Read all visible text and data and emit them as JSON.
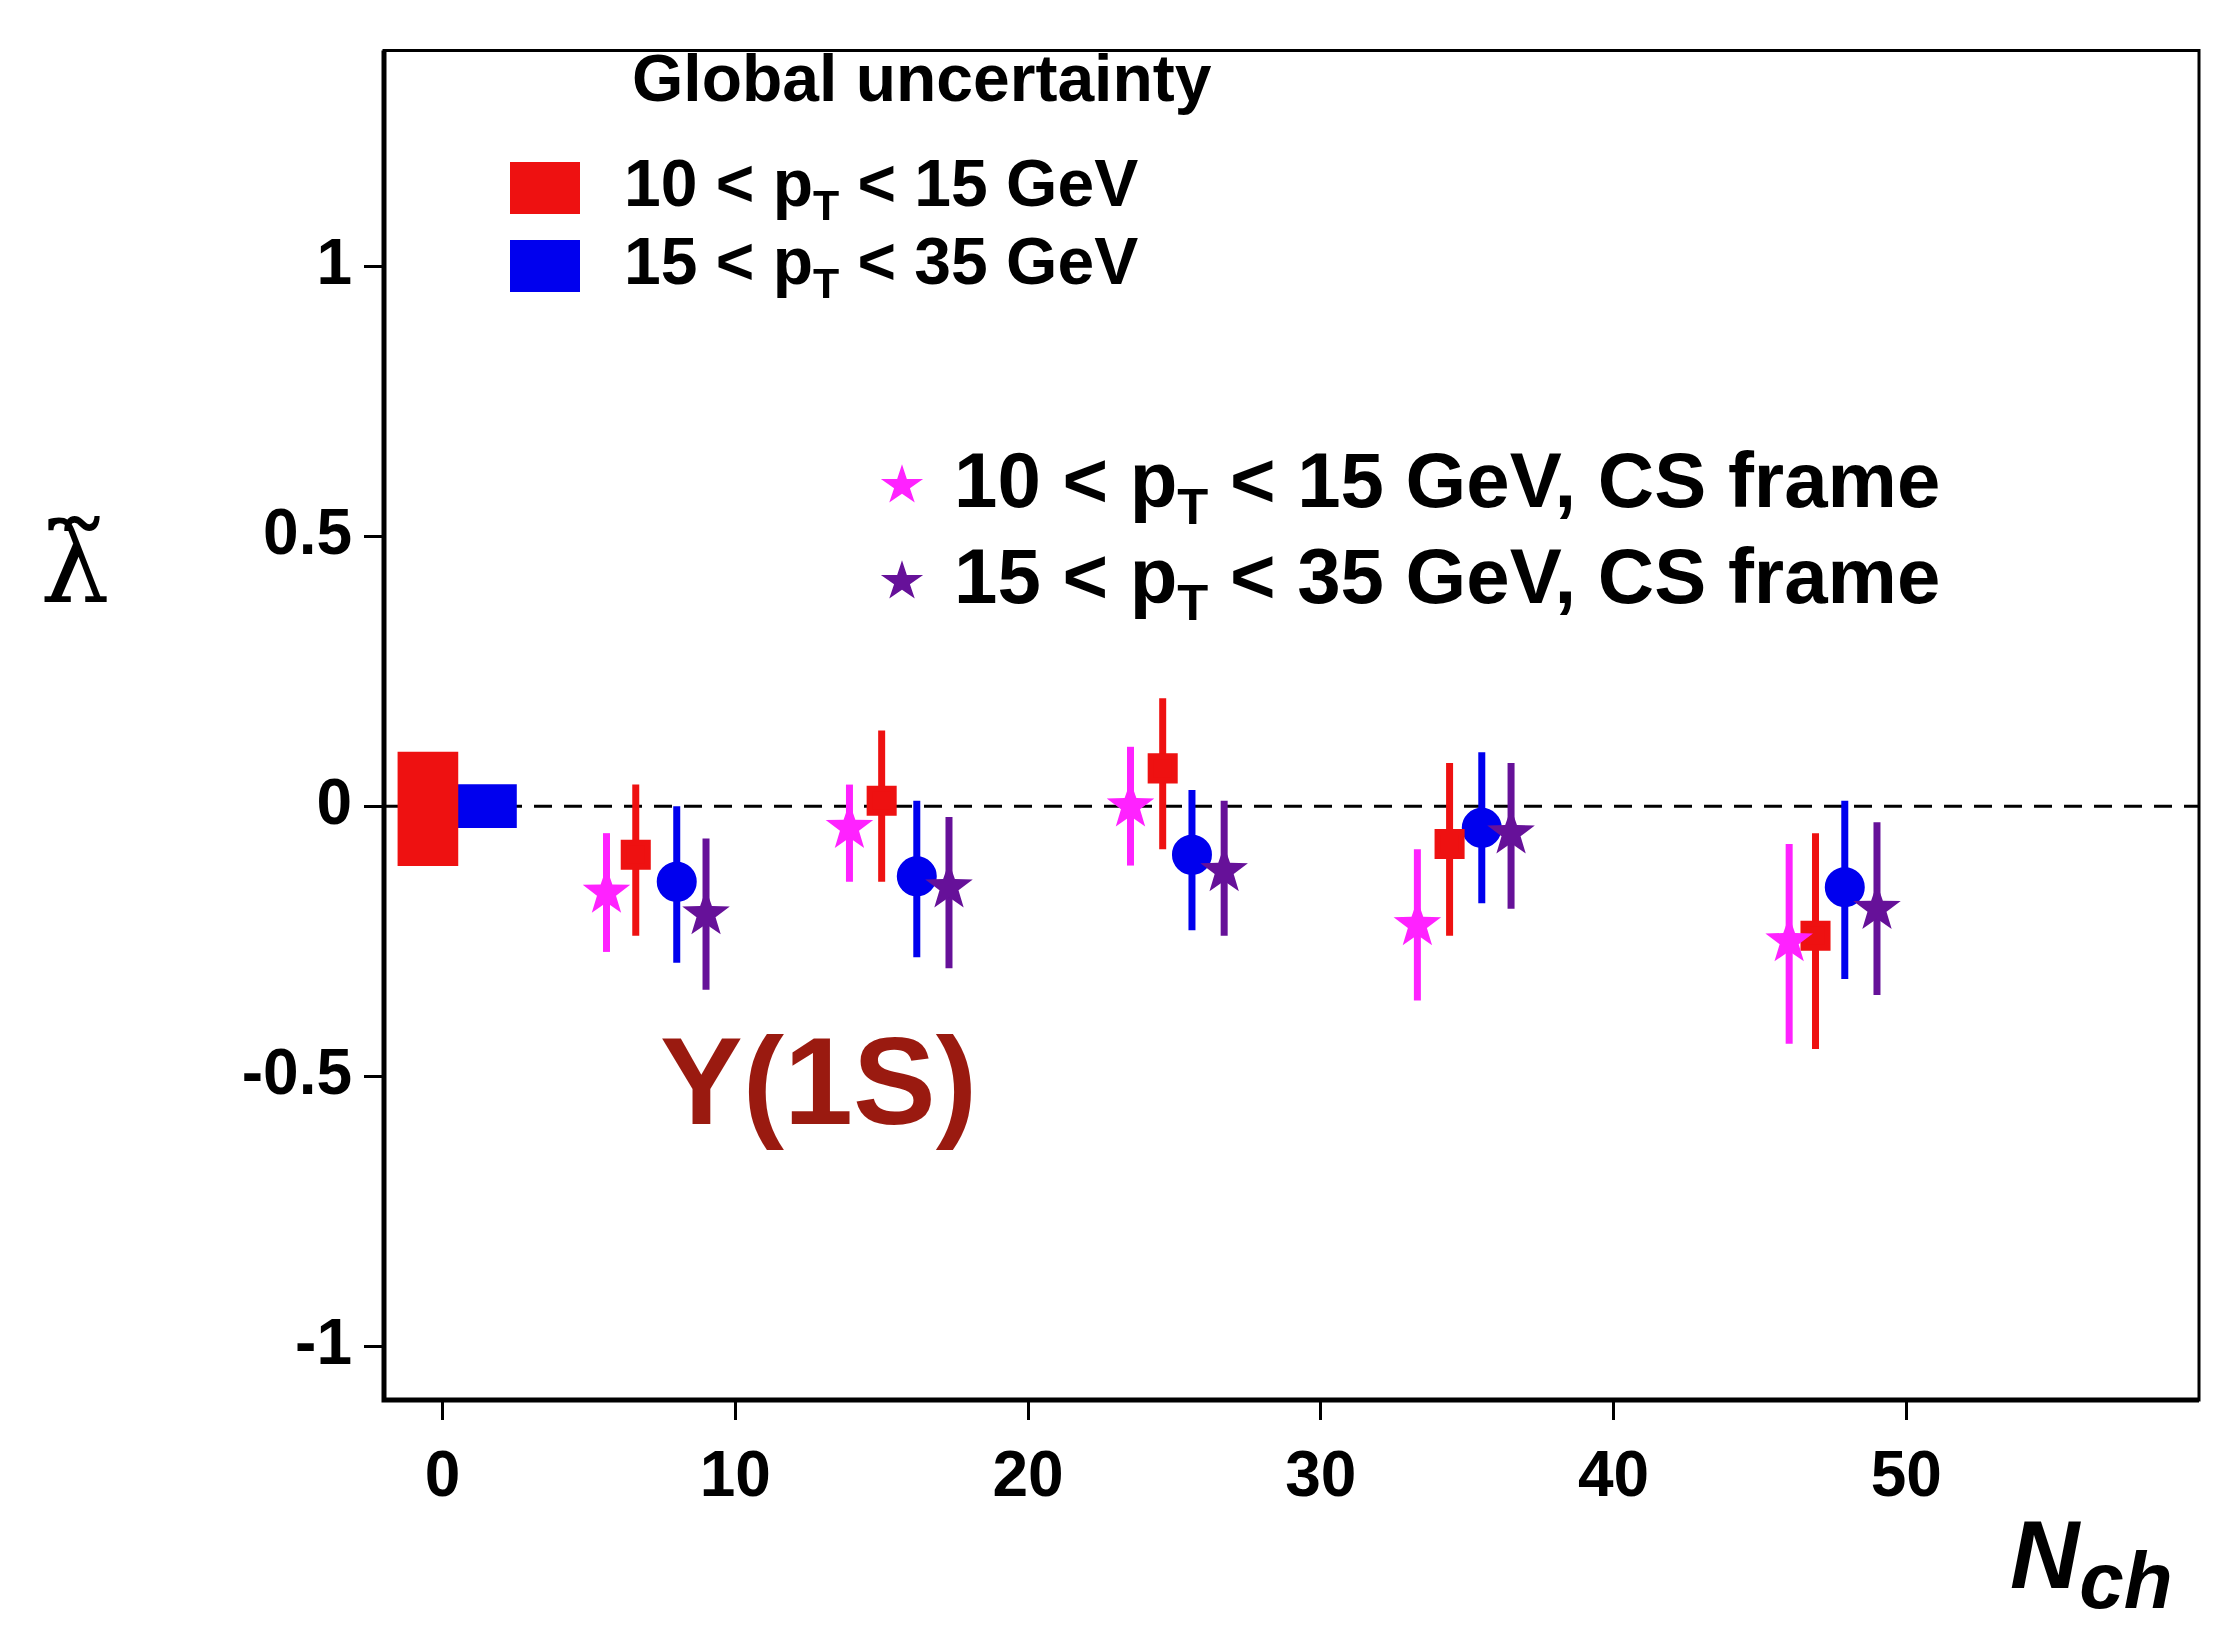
{
  "chart_data": {
    "type": "scatter",
    "xlabel": "N$_{ch}$",
    "ylabel": "λ̃",
    "legend_title": "Global uncertainty",
    "legend": "top",
    "xlim": [
      -2,
      60
    ],
    "ylim": [
      -1.1,
      1.4
    ],
    "xticks": [
      0,
      10,
      20,
      30,
      40,
      50
    ],
    "yticks": [
      -1,
      -0.5,
      0,
      0.5,
      1
    ],
    "ref_lines": [
      {
        "axis": "y",
        "value": 0,
        "color": "#000000",
        "line_style": "dashed"
      }
    ],
    "annotations": [
      "Υ(1S)"
    ],
    "series": [
      {
        "name": "10 < p$_{T}$ < 15 GeV",
        "type": "bar",
        "color": "#ee1111",
        "x": [
          -0.5
        ],
        "base": [
          -0.11
        ],
        "values": [
          0.21
        ]
      },
      {
        "name": "15 < p$_{T}$ < 35 GeV",
        "type": "bar",
        "color": "#0000ee",
        "x": [
          1.5
        ],
        "base": [
          -0.04
        ],
        "values": [
          0.08
        ]
      },
      {
        "name": "10 < p$_{T}$ < 15 GeV, CS frame",
        "marker": "star",
        "color": "#ff22ff",
        "x": [
          5.6,
          13.9,
          23.5,
          33.3,
          46.0
        ],
        "values": [
          -0.16,
          -0.04,
          0.0,
          -0.22,
          -0.25
        ],
        "errors": [
          [
            -0.27,
            -0.05
          ],
          [
            -0.14,
            0.04
          ],
          [
            -0.11,
            0.11
          ],
          [
            -0.36,
            -0.08
          ],
          [
            -0.44,
            -0.07
          ]
        ]
      },
      {
        "marker": "square",
        "color": "#ee1111",
        "x": [
          6.6,
          15.0,
          24.6,
          34.4,
          46.9
        ],
        "values": [
          -0.09,
          0.01,
          0.07,
          -0.07,
          -0.24
        ],
        "errors": [
          [
            -0.24,
            0.04
          ],
          [
            -0.14,
            0.14
          ],
          [
            -0.08,
            0.2
          ],
          [
            -0.24,
            0.08
          ],
          [
            -0.45,
            -0.05
          ]
        ]
      },
      {
        "marker": "circle",
        "color": "#0000ee",
        "x": [
          8.0,
          16.2,
          25.6,
          35.5,
          47.9
        ],
        "values": [
          -0.14,
          -0.13,
          -0.09,
          -0.04,
          -0.15
        ],
        "errors": [
          [
            -0.29,
            0.0
          ],
          [
            -0.28,
            0.01
          ],
          [
            -0.23,
            0.03
          ],
          [
            -0.18,
            0.1
          ],
          [
            -0.32,
            0.01
          ]
        ]
      },
      {
        "name": "15 < p$_{T}$ < 35 GeV, CS frame",
        "marker": "star",
        "color": "#661199",
        "x": [
          9.0,
          17.3,
          26.7,
          36.5,
          49.0
        ],
        "values": [
          -0.2,
          -0.15,
          -0.12,
          -0.05,
          -0.19
        ],
        "errors": [
          [
            -0.34,
            -0.06
          ],
          [
            -0.3,
            -0.02
          ],
          [
            -0.24,
            0.01
          ],
          [
            -0.19,
            0.08
          ],
          [
            -0.35,
            -0.03
          ]
        ]
      }
    ]
  }
}
